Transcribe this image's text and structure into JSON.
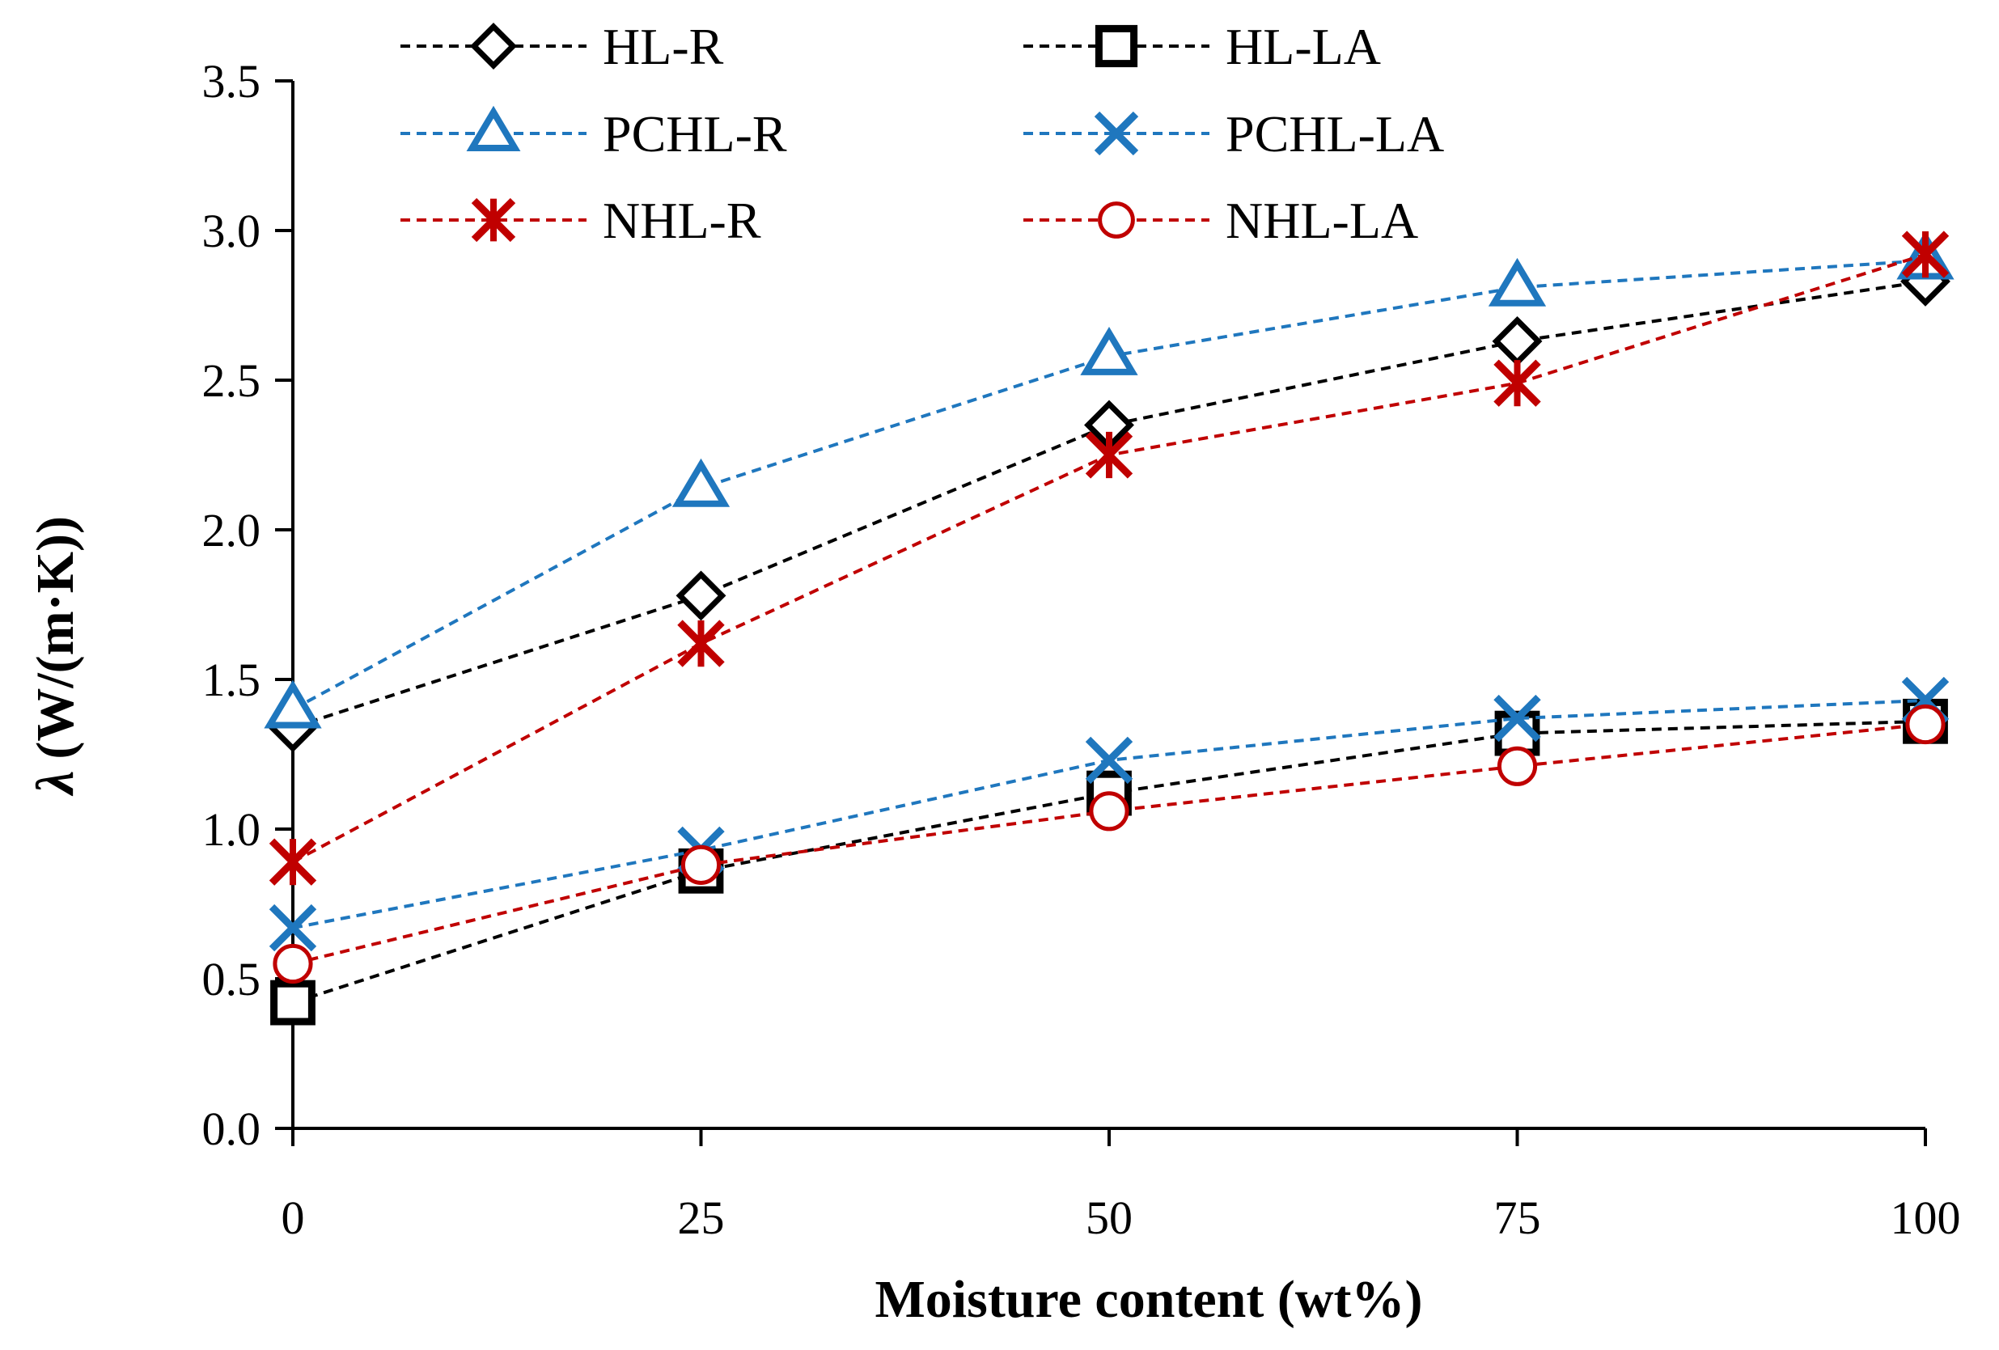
{
  "chart_data": {
    "type": "line",
    "title": "",
    "xlabel": "Moisture content (wt%)",
    "ylabel_symbol": "λ",
    "ylabel": "(W/(m·K))",
    "x": [
      0,
      25,
      50,
      75,
      100
    ],
    "x_tick_labels": [
      "0",
      "25",
      "50",
      "75",
      "100"
    ],
    "xlim": [
      0,
      100
    ],
    "ylim": [
      0,
      3.5
    ],
    "y_tick_labels": [
      "0.0",
      "0.5",
      "1.0",
      "1.5",
      "2.0",
      "2.5",
      "3.0",
      "3.5"
    ],
    "grid": false,
    "legend_position": "top",
    "series": [
      {
        "name": "HL-R",
        "color": "#000000",
        "marker": "diamond",
        "values": [
          1.34,
          1.78,
          2.35,
          2.63,
          2.83
        ]
      },
      {
        "name": "HL-LA",
        "color": "#000000",
        "marker": "square",
        "values": [
          0.42,
          0.86,
          1.12,
          1.32,
          1.36
        ]
      },
      {
        "name": "PCHL-R",
        "color": "#1F77BE",
        "marker": "triangle",
        "values": [
          1.4,
          2.14,
          2.58,
          2.81,
          2.9
        ]
      },
      {
        "name": "PCHL-LA",
        "color": "#1F77BE",
        "marker": "x",
        "values": [
          0.67,
          0.93,
          1.23,
          1.37,
          1.43
        ]
      },
      {
        "name": "NHL-R",
        "color": "#C00000",
        "marker": "star",
        "values": [
          0.89,
          1.62,
          2.25,
          2.49,
          2.92
        ]
      },
      {
        "name": "NHL-LA",
        "color": "#C00000",
        "marker": "circle",
        "values": [
          0.55,
          0.88,
          1.06,
          1.21,
          1.35
        ]
      }
    ]
  }
}
